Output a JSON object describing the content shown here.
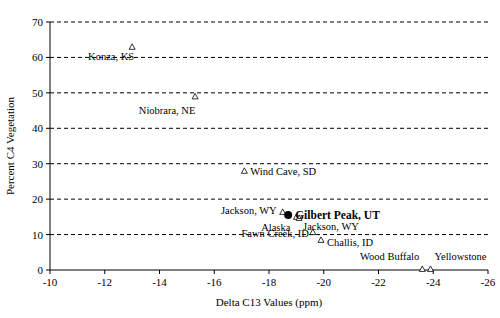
{
  "chart_data": {
    "type": "scatter",
    "x_label": "Delta C13 Values (ppm)",
    "y_label": "Percent C4 Vegetation",
    "xlim": [
      -10,
      -26
    ],
    "xticks": [
      -10,
      -12,
      -14,
      -16,
      -18,
      -20,
      -22,
      -24,
      -26
    ],
    "ylim": [
      0,
      70
    ],
    "yticks": [
      0,
      10,
      20,
      30,
      40,
      50,
      60,
      70
    ],
    "grid": true,
    "series": [
      {
        "marker": "triangle",
        "color": "#000000",
        "labels": [
          "Konza, KS",
          "Niobrara, NE",
          "Wind Cave, SD",
          "Jackson, WY",
          "Alaska",
          "Jackson, WY",
          "Fawn Creek, ID",
          "Challis, ID",
          "Wood Buffalo",
          "Yellowstone"
        ],
        "x": [
          -13.0,
          -15.3,
          -17.1,
          -18.5,
          -19.0,
          -19.1,
          -19.6,
          -19.9,
          -23.6,
          -23.9
        ],
        "values": [
          63,
          49,
          28,
          16.4,
          15,
          14.7,
          10.7,
          8.5,
          0.3,
          0.3
        ]
      },
      {
        "marker": "circle",
        "color": "#000000",
        "labels": [
          "Gilbert Peak, UT"
        ],
        "x": [
          -18.7
        ],
        "values": [
          15.5
        ]
      }
    ]
  }
}
